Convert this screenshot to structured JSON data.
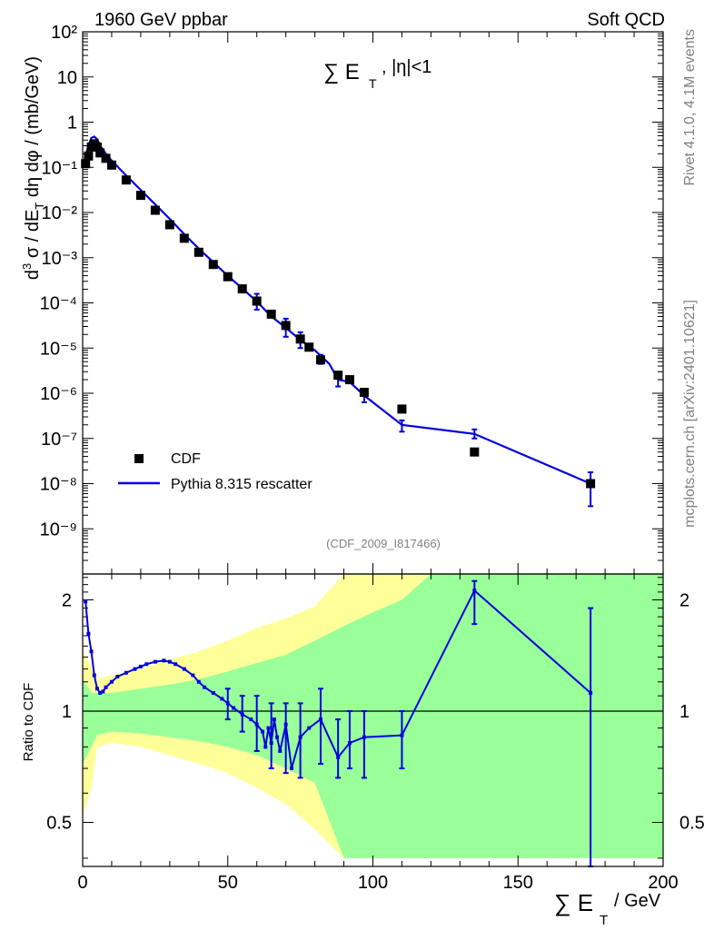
{
  "header": {
    "left": "1960 GeV ppbar",
    "right": "Soft QCD"
  },
  "side": {
    "top": "Rivet 4.1.0,  4.1M events",
    "bottom": "mcplots.cern.ch [arXiv:2401.10621]"
  },
  "chart_data": [
    {
      "type": "scatter",
      "panel": "main",
      "title_prefix": "∑ E",
      "title_sub": "T",
      "title_suffix": ", |η|<1",
      "ylabel": "d³σ / dE_T dη dφ / (mb/GeV)",
      "ylabel_pre": "d",
      "ylabel_sup": "3",
      "ylabel_mid": " σ / dE",
      "ylabel_sub": "T",
      "ylabel_post": " dη dφ / (mb/GeV)",
      "xlim": [
        0,
        200
      ],
      "ylim_log10": [
        -10,
        2
      ],
      "y_tick_exponents": [
        2,
        1,
        0,
        -1,
        -2,
        -3,
        -4,
        -5,
        -6,
        -7,
        -8,
        -9
      ],
      "y_tick_labels": [
        "10²",
        "10",
        "1",
        "10⁻¹",
        "10⁻²",
        "10⁻³",
        "10⁻⁴",
        "10⁻⁵",
        "10⁻⁶",
        "10⁻⁷",
        "10⁻⁸",
        "10⁻⁹"
      ],
      "watermark": "(CDF_2009_I817466)",
      "legend": {
        "placement": "bottom-left",
        "entries": [
          {
            "label": "CDF",
            "style": "marker"
          },
          {
            "label": "Pythia 8.315 rescatter",
            "style": "line"
          }
        ]
      },
      "series": [
        {
          "name": "CDF",
          "points_log10": [
            [
              1,
              -0.92
            ],
            [
              2,
              -0.75
            ],
            [
              3,
              -0.55
            ],
            [
              4,
              -0.48
            ],
            [
              5,
              -0.55
            ],
            [
              6,
              -0.68
            ],
            [
              8,
              -0.8
            ],
            [
              10,
              -0.95
            ],
            [
              15,
              -1.28
            ],
            [
              20,
              -1.62
            ],
            [
              25,
              -1.95
            ],
            [
              30,
              -2.27
            ],
            [
              35,
              -2.57
            ],
            [
              40,
              -2.88
            ],
            [
              45,
              -3.15
            ],
            [
              50,
              -3.42
            ],
            [
              55,
              -3.69
            ],
            [
              60,
              -3.96
            ],
            [
              65,
              -4.25
            ],
            [
              70,
              -4.5
            ],
            [
              75,
              -4.8
            ],
            [
              78,
              -4.98
            ],
            [
              82,
              -5.26
            ],
            [
              88,
              -5.6
            ],
            [
              92,
              -5.7
            ],
            [
              97,
              -5.98
            ],
            [
              110,
              -6.35
            ],
            [
              135,
              -7.3
            ],
            [
              175,
              -8.0
            ]
          ]
        },
        {
          "name": "Pythia 8.315 rescatter",
          "points_log10": [
            [
              0.5,
              -0.9
            ],
            [
              1,
              -0.75
            ],
            [
              2,
              -0.52
            ],
            [
              3,
              -0.35
            ],
            [
              4,
              -0.32
            ],
            [
              5,
              -0.38
            ],
            [
              6,
              -0.52
            ],
            [
              8,
              -0.7
            ],
            [
              10,
              -0.85
            ],
            [
              15,
              -1.18
            ],
            [
              20,
              -1.5
            ],
            [
              25,
              -1.82
            ],
            [
              30,
              -2.14
            ],
            [
              35,
              -2.48
            ],
            [
              40,
              -2.8
            ],
            [
              45,
              -3.1
            ],
            [
              50,
              -3.4
            ],
            [
              55,
              -3.68
            ],
            [
              60,
              -3.97
            ],
            [
              65,
              -4.3
            ],
            [
              70,
              -4.55
            ],
            [
              75,
              -4.82
            ],
            [
              80,
              -5.05
            ],
            [
              85,
              -5.35
            ],
            [
              88,
              -5.7
            ],
            [
              92,
              -5.75
            ],
            [
              97,
              -6.05
            ],
            [
              110,
              -6.7
            ],
            [
              135,
              -6.9
            ],
            [
              175,
              -8.0
            ]
          ],
          "error_bars_log10": [
            [
              60,
              -4.15,
              -3.8
            ],
            [
              70,
              -4.75,
              -4.35
            ],
            [
              75,
              -5.0,
              -4.65
            ],
            [
              82,
              -5.35,
              -5.15
            ],
            [
              88,
              -5.85,
              -5.55
            ],
            [
              97,
              -6.2,
              -5.9
            ],
            [
              110,
              -6.85,
              -6.6
            ],
            [
              135,
              -7.0,
              -6.8
            ],
            [
              175,
              -8.5,
              -7.75
            ]
          ]
        }
      ]
    },
    {
      "type": "line",
      "panel": "ratio",
      "ylabel": "Ratio to CDF",
      "xlabel_prefix": "∑ E",
      "xlabel_sub": "T",
      "xlabel_suffix": " / GeV",
      "xlim": [
        0,
        200
      ],
      "ylim": [
        0.38,
        2.35
      ],
      "y_scale": "log",
      "y_tick_values": [
        0.5,
        1,
        2
      ],
      "y_tick_labels": [
        "0.5",
        "1",
        "2"
      ],
      "x_tick_values": [
        0,
        50,
        100,
        150,
        200
      ],
      "x_tick_labels": [
        "0",
        "50",
        "100",
        "150",
        "200"
      ],
      "reference_line": 1,
      "uncertainty_bands": [
        {
          "name": "yellow",
          "color": "#ffff99",
          "x": [
            0,
            3,
            5,
            10,
            20,
            30,
            40,
            50,
            60,
            70,
            80,
            90,
            100,
            110,
            120,
            135,
            150,
            175,
            200
          ],
          "lo": [
            0.52,
            0.62,
            0.8,
            0.82,
            0.8,
            0.76,
            0.72,
            0.68,
            0.62,
            0.56,
            0.48,
            0.4,
            0.4,
            0.4,
            0.4,
            0.4,
            0.4,
            0.4,
            0.4
          ],
          "hi": [
            1.45,
            1.32,
            1.22,
            1.25,
            1.3,
            1.38,
            1.45,
            1.55,
            1.68,
            1.78,
            1.92,
            2.35,
            2.35,
            2.35,
            2.35,
            2.35,
            2.35,
            2.35,
            2.35
          ]
        },
        {
          "name": "green",
          "color": "#99ff99",
          "x": [
            0,
            3,
            5,
            10,
            20,
            30,
            40,
            50,
            60,
            70,
            80,
            90,
            100,
            110,
            120,
            135,
            150,
            175,
            200
          ],
          "lo": [
            0.72,
            0.8,
            0.86,
            0.88,
            0.87,
            0.85,
            0.83,
            0.8,
            0.76,
            0.7,
            0.64,
            0.4,
            0.4,
            0.4,
            0.4,
            0.4,
            0.4,
            0.4,
            0.4
          ],
          "hi": [
            1.22,
            1.12,
            1.12,
            1.12,
            1.15,
            1.18,
            1.22,
            1.28,
            1.35,
            1.42,
            1.55,
            1.7,
            1.85,
            2.0,
            2.35,
            2.35,
            2.35,
            2.35,
            2.35
          ]
        }
      ],
      "series": [
        {
          "name": "Pythia 8.315 rescatter",
          "x": [
            1,
            2,
            3,
            4,
            5,
            6,
            7,
            8,
            10,
            12,
            15,
            18,
            20,
            22,
            25,
            28,
            30,
            32,
            35,
            38,
            40,
            42,
            45,
            48,
            50,
            52,
            55,
            58,
            60,
            62,
            63,
            64,
            65,
            66,
            67,
            68,
            70,
            72,
            75,
            78,
            82,
            88,
            92,
            97,
            110,
            135,
            175
          ],
          "y": [
            1.98,
            1.62,
            1.45,
            1.25,
            1.15,
            1.12,
            1.13,
            1.16,
            1.2,
            1.24,
            1.27,
            1.3,
            1.32,
            1.34,
            1.36,
            1.37,
            1.36,
            1.34,
            1.3,
            1.25,
            1.2,
            1.16,
            1.12,
            1.08,
            1.05,
            1.02,
            0.98,
            0.95,
            0.92,
            0.88,
            0.8,
            0.9,
            0.82,
            0.95,
            0.85,
            0.78,
            0.92,
            0.7,
            0.85,
            0.9,
            0.95,
            0.75,
            0.82,
            0.85,
            0.86,
            2.12,
            1.12
          ],
          "error_bars": [
            [
              50,
              0.95,
              1.15
            ],
            [
              55,
              0.88,
              1.1
            ],
            [
              60,
              0.78,
              1.1
            ],
            [
              65,
              0.7,
              1.05
            ],
            [
              70,
              0.68,
              1.05
            ],
            [
              75,
              0.66,
              1.05
            ],
            [
              82,
              0.72,
              1.15
            ],
            [
              88,
              0.66,
              0.95
            ],
            [
              92,
              0.7,
              1.0
            ],
            [
              97,
              0.66,
              1.0
            ],
            [
              110,
              0.7,
              1.0
            ],
            [
              135,
              1.72,
              2.25
            ],
            [
              175,
              0.38,
              1.9
            ]
          ]
        }
      ]
    }
  ]
}
